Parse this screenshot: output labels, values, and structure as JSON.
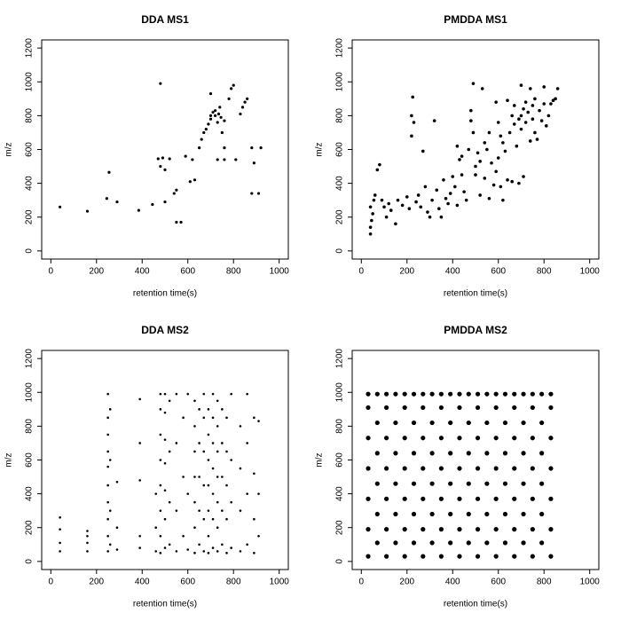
{
  "chart_data": [
    {
      "type": "scatter",
      "title": "DDA MS1",
      "x_label": "retention time(s)",
      "y_label": "m/z",
      "color": "#000000",
      "xlim": [
        -40,
        1040
      ],
      "ylim": [
        -48,
        1248
      ],
      "xticks": [
        0,
        200,
        400,
        600,
        800,
        1000
      ],
      "yticks": [
        0,
        200,
        400,
        600,
        800,
        1000,
        1200
      ],
      "x": [
        40,
        160,
        245,
        255,
        290,
        385,
        445,
        470,
        480,
        480,
        490,
        500,
        500,
        520,
        540,
        550,
        550,
        570,
        590,
        610,
        620,
        630,
        650,
        670,
        690,
        700,
        710,
        720,
        730,
        740,
        700,
        730,
        750,
        760,
        790,
        800,
        780,
        810,
        760,
        840,
        850,
        860,
        830,
        880,
        880,
        890,
        910,
        920,
        760,
        680,
        720,
        745,
        735,
        700,
        660
      ],
      "y": [
        260,
        235,
        310,
        465,
        290,
        240,
        275,
        545,
        990,
        500,
        550,
        480,
        290,
        545,
        340,
        360,
        170,
        170,
        560,
        410,
        540,
        420,
        610,
        700,
        750,
        780,
        820,
        800,
        760,
        850,
        930,
        540,
        700,
        770,
        960,
        980,
        900,
        540,
        540,
        850,
        880,
        900,
        810,
        610,
        340,
        520,
        340,
        610,
        610,
        720,
        830,
        790,
        810,
        800,
        660
      ]
    },
    {
      "type": "scatter",
      "title": "PMDDA MS1",
      "x_label": "retention time(s)",
      "y_label": "m/z",
      "color": "#000000",
      "xlim": [
        -40,
        1040
      ],
      "ylim": [
        -48,
        1248
      ],
      "xticks": [
        0,
        200,
        400,
        600,
        800,
        1000
      ],
      "yticks": [
        0,
        200,
        400,
        600,
        800,
        1000,
        1200
      ],
      "x": [
        40,
        40,
        45,
        50,
        40,
        55,
        60,
        70,
        80,
        90,
        100,
        110,
        120,
        130,
        150,
        160,
        180,
        200,
        210,
        220,
        220,
        225,
        230,
        240,
        250,
        260,
        270,
        280,
        290,
        300,
        310,
        320,
        330,
        340,
        350,
        360,
        370,
        380,
        390,
        400,
        410,
        420,
        430,
        440,
        450,
        460,
        470,
        480,
        480,
        490,
        490,
        500,
        500,
        510,
        520,
        520,
        530,
        540,
        540,
        550,
        560,
        560,
        570,
        580,
        590,
        600,
        610,
        610,
        620,
        620,
        630,
        640,
        650,
        660,
        660,
        670,
        670,
        680,
        690,
        690,
        700,
        700,
        710,
        710,
        720,
        720,
        730,
        740,
        740,
        750,
        750,
        760,
        760,
        770,
        780,
        790,
        800,
        800,
        810,
        820,
        830,
        840,
        850,
        860,
        700,
        590,
        640,
        440,
        420,
        600
      ],
      "y": [
        100,
        140,
        180,
        220,
        260,
        300,
        330,
        480,
        510,
        300,
        260,
        200,
        280,
        240,
        160,
        300,
        270,
        320,
        250,
        680,
        800,
        910,
        760,
        290,
        330,
        260,
        590,
        380,
        230,
        200,
        300,
        770,
        360,
        250,
        200,
        420,
        310,
        280,
        340,
        440,
        380,
        270,
        540,
        450,
        350,
        300,
        600,
        830,
        770,
        990,
        700,
        450,
        500,
        580,
        530,
        330,
        960,
        640,
        430,
        600,
        700,
        310,
        520,
        390,
        470,
        550,
        680,
        380,
        640,
        300,
        590,
        420,
        700,
        800,
        410,
        750,
        860,
        620,
        780,
        400,
        720,
        800,
        840,
        440,
        760,
        880,
        820,
        960,
        650,
        780,
        860,
        700,
        900,
        660,
        830,
        770,
        870,
        970,
        740,
        800,
        870,
        890,
        900,
        960,
        980,
        880,
        890,
        560,
        620,
        760
      ]
    },
    {
      "type": "scatter",
      "title": "DDA MS2",
      "x_label": "retention time(s)",
      "y_label": "m/z",
      "color": "#000000",
      "xlim": [
        -40,
        1040
      ],
      "ylim": [
        -48,
        1248
      ],
      "xticks": [
        0,
        200,
        400,
        600,
        800,
        1000
      ],
      "yticks": [
        0,
        200,
        400,
        600,
        800,
        1000,
        1200
      ],
      "x": [
        40,
        40,
        40,
        40,
        160,
        160,
        160,
        160,
        250,
        250,
        250,
        250,
        250,
        250,
        250,
        250,
        250,
        250,
        260,
        260,
        260,
        260,
        290,
        290,
        290,
        390,
        390,
        390,
        390,
        390,
        460,
        460,
        460,
        480,
        480,
        480,
        480,
        480,
        480,
        480,
        480,
        500,
        500,
        500,
        500,
        500,
        500,
        500,
        520,
        520,
        520,
        520,
        550,
        550,
        550,
        550,
        580,
        580,
        580,
        600,
        600,
        600,
        630,
        630,
        630,
        630,
        630,
        630,
        630,
        650,
        650,
        650,
        650,
        650,
        670,
        670,
        670,
        670,
        670,
        670,
        690,
        690,
        690,
        690,
        690,
        690,
        690,
        710,
        710,
        710,
        710,
        710,
        710,
        710,
        730,
        730,
        730,
        730,
        730,
        730,
        730,
        750,
        750,
        750,
        750,
        750,
        770,
        770,
        770,
        770,
        770,
        790,
        790,
        790,
        790,
        830,
        830,
        830,
        830,
        860,
        860,
        860,
        860,
        890,
        890,
        890,
        890,
        910,
        910,
        910
      ],
      "y": [
        60,
        110,
        190,
        260,
        60,
        110,
        150,
        180,
        60,
        150,
        250,
        350,
        450,
        560,
        650,
        750,
        850,
        990,
        100,
        300,
        600,
        900,
        70,
        200,
        470,
        80,
        150,
        480,
        700,
        960,
        60,
        200,
        400,
        50,
        150,
        300,
        450,
        600,
        750,
        900,
        990,
        80,
        250,
        420,
        580,
        720,
        880,
        990,
        100,
        350,
        650,
        950,
        60,
        300,
        700,
        990,
        150,
        500,
        850,
        70,
        400,
        990,
        50,
        200,
        350,
        500,
        650,
        800,
        950,
        100,
        300,
        500,
        700,
        900,
        60,
        250,
        450,
        650,
        850,
        990,
        50,
        150,
        300,
        450,
        600,
        750,
        900,
        80,
        250,
        400,
        550,
        700,
        850,
        990,
        60,
        200,
        350,
        500,
        650,
        800,
        950,
        100,
        300,
        500,
        700,
        900,
        50,
        250,
        450,
        650,
        850,
        80,
        350,
        600,
        990,
        60,
        300,
        550,
        800,
        100,
        400,
        700,
        990,
        50,
        250,
        520,
        850,
        150,
        400,
        830
      ]
    },
    {
      "type": "scatter",
      "title": "PMDDA MS2",
      "x_label": "retention time(s)",
      "y_label": "m/z",
      "color": "#000000",
      "xlim": [
        -40,
        1040
      ],
      "ylim": [
        -48,
        1248
      ],
      "xticks": [
        0,
        200,
        400,
        600,
        800,
        1000
      ],
      "yticks": [
        0,
        200,
        400,
        600,
        800,
        1000,
        1200
      ],
      "x": [
        30,
        30,
        30,
        30,
        30,
        30,
        30,
        70,
        70,
        70,
        70,
        70,
        70,
        110,
        110,
        110,
        110,
        110,
        110,
        110,
        150,
        150,
        150,
        150,
        150,
        150,
        190,
        190,
        190,
        190,
        190,
        190,
        190,
        230,
        230,
        230,
        230,
        230,
        230,
        270,
        270,
        270,
        270,
        270,
        270,
        270,
        310,
        310,
        310,
        310,
        310,
        310,
        350,
        350,
        350,
        350,
        350,
        350,
        350,
        390,
        390,
        390,
        390,
        390,
        390,
        430,
        430,
        430,
        430,
        430,
        430,
        430,
        470,
        470,
        470,
        470,
        470,
        470,
        510,
        510,
        510,
        510,
        510,
        510,
        510,
        550,
        550,
        550,
        550,
        550,
        550,
        590,
        590,
        590,
        590,
        590,
        590,
        590,
        630,
        630,
        630,
        630,
        630,
        630,
        670,
        670,
        670,
        670,
        670,
        670,
        670,
        710,
        710,
        710,
        710,
        710,
        710,
        750,
        750,
        750,
        750,
        750,
        750,
        750,
        790,
        790,
        790,
        790,
        790,
        790,
        830,
        830,
        830,
        830,
        830,
        830,
        830
      ],
      "y": [
        30,
        190,
        370,
        550,
        730,
        910,
        990,
        110,
        280,
        460,
        640,
        820,
        990,
        30,
        190,
        370,
        550,
        730,
        910,
        990,
        110,
        280,
        460,
        640,
        820,
        990,
        30,
        190,
        370,
        550,
        730,
        910,
        990,
        110,
        280,
        460,
        640,
        820,
        990,
        30,
        190,
        370,
        550,
        730,
        910,
        990,
        110,
        280,
        460,
        640,
        820,
        990,
        30,
        190,
        370,
        550,
        730,
        910,
        990,
        110,
        280,
        460,
        640,
        820,
        990,
        30,
        190,
        370,
        550,
        730,
        910,
        990,
        110,
        280,
        460,
        640,
        820,
        990,
        30,
        190,
        370,
        550,
        730,
        910,
        990,
        110,
        280,
        460,
        640,
        820,
        990,
        30,
        190,
        370,
        550,
        730,
        910,
        990,
        110,
        280,
        460,
        640,
        820,
        990,
        30,
        190,
        370,
        550,
        730,
        910,
        990,
        110,
        280,
        460,
        640,
        820,
        990,
        30,
        190,
        370,
        550,
        730,
        910,
        990,
        110,
        280,
        460,
        640,
        820,
        990,
        30,
        190,
        370,
        550,
        730,
        910,
        990
      ]
    }
  ]
}
